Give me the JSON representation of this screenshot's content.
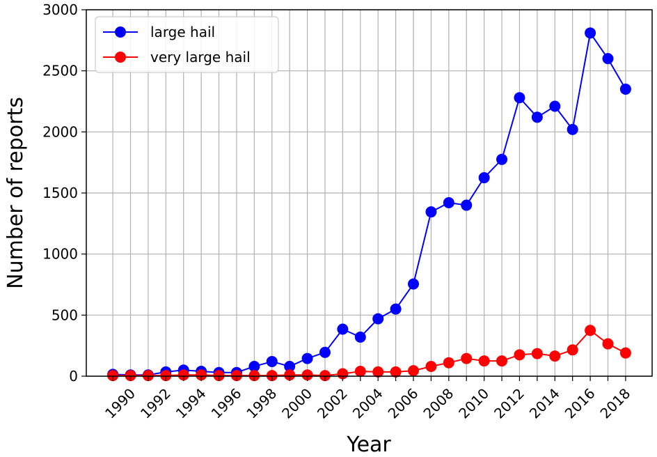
{
  "chart_data": {
    "type": "line",
    "xlabel": "Year",
    "ylabel": "Number of reports",
    "xlim": [
      1987.5,
      2019.5
    ],
    "ylim": [
      0,
      3000
    ],
    "xticks": [
      "1990",
      "1992",
      "1994",
      "1996",
      "1998",
      "2000",
      "2002",
      "2004",
      "2006",
      "2008",
      "2010",
      "2012",
      "2014",
      "2016",
      "2018"
    ],
    "yticks": [
      "0",
      "500",
      "1000",
      "1500",
      "2000",
      "2500",
      "3000"
    ],
    "grid": true,
    "legend": "top-left",
    "x": [
      1989,
      1990,
      1991,
      1992,
      1993,
      1994,
      1995,
      1996,
      1997,
      1998,
      1999,
      2000,
      2001,
      2002,
      2003,
      2004,
      2005,
      2006,
      2007,
      2008,
      2009,
      2010,
      2011,
      2012,
      2013,
      2014,
      2015,
      2016,
      2017,
      2018
    ],
    "series": [
      {
        "name": "large hail",
        "color": "#0000ff",
        "values": [
          15,
          10,
          10,
          35,
          50,
          40,
          30,
          30,
          80,
          120,
          80,
          145,
          195,
          385,
          320,
          470,
          550,
          755,
          1345,
          1420,
          1400,
          1625,
          1775,
          2280,
          2120,
          2210,
          2020,
          2810,
          2600,
          2350
        ]
      },
      {
        "name": "very large hail",
        "color": "#ff0000",
        "values": [
          5,
          5,
          5,
          5,
          10,
          10,
          5,
          5,
          5,
          5,
          10,
          10,
          5,
          20,
          40,
          35,
          35,
          45,
          80,
          110,
          145,
          125,
          125,
          175,
          185,
          165,
          215,
          375,
          265,
          190
        ]
      }
    ]
  }
}
